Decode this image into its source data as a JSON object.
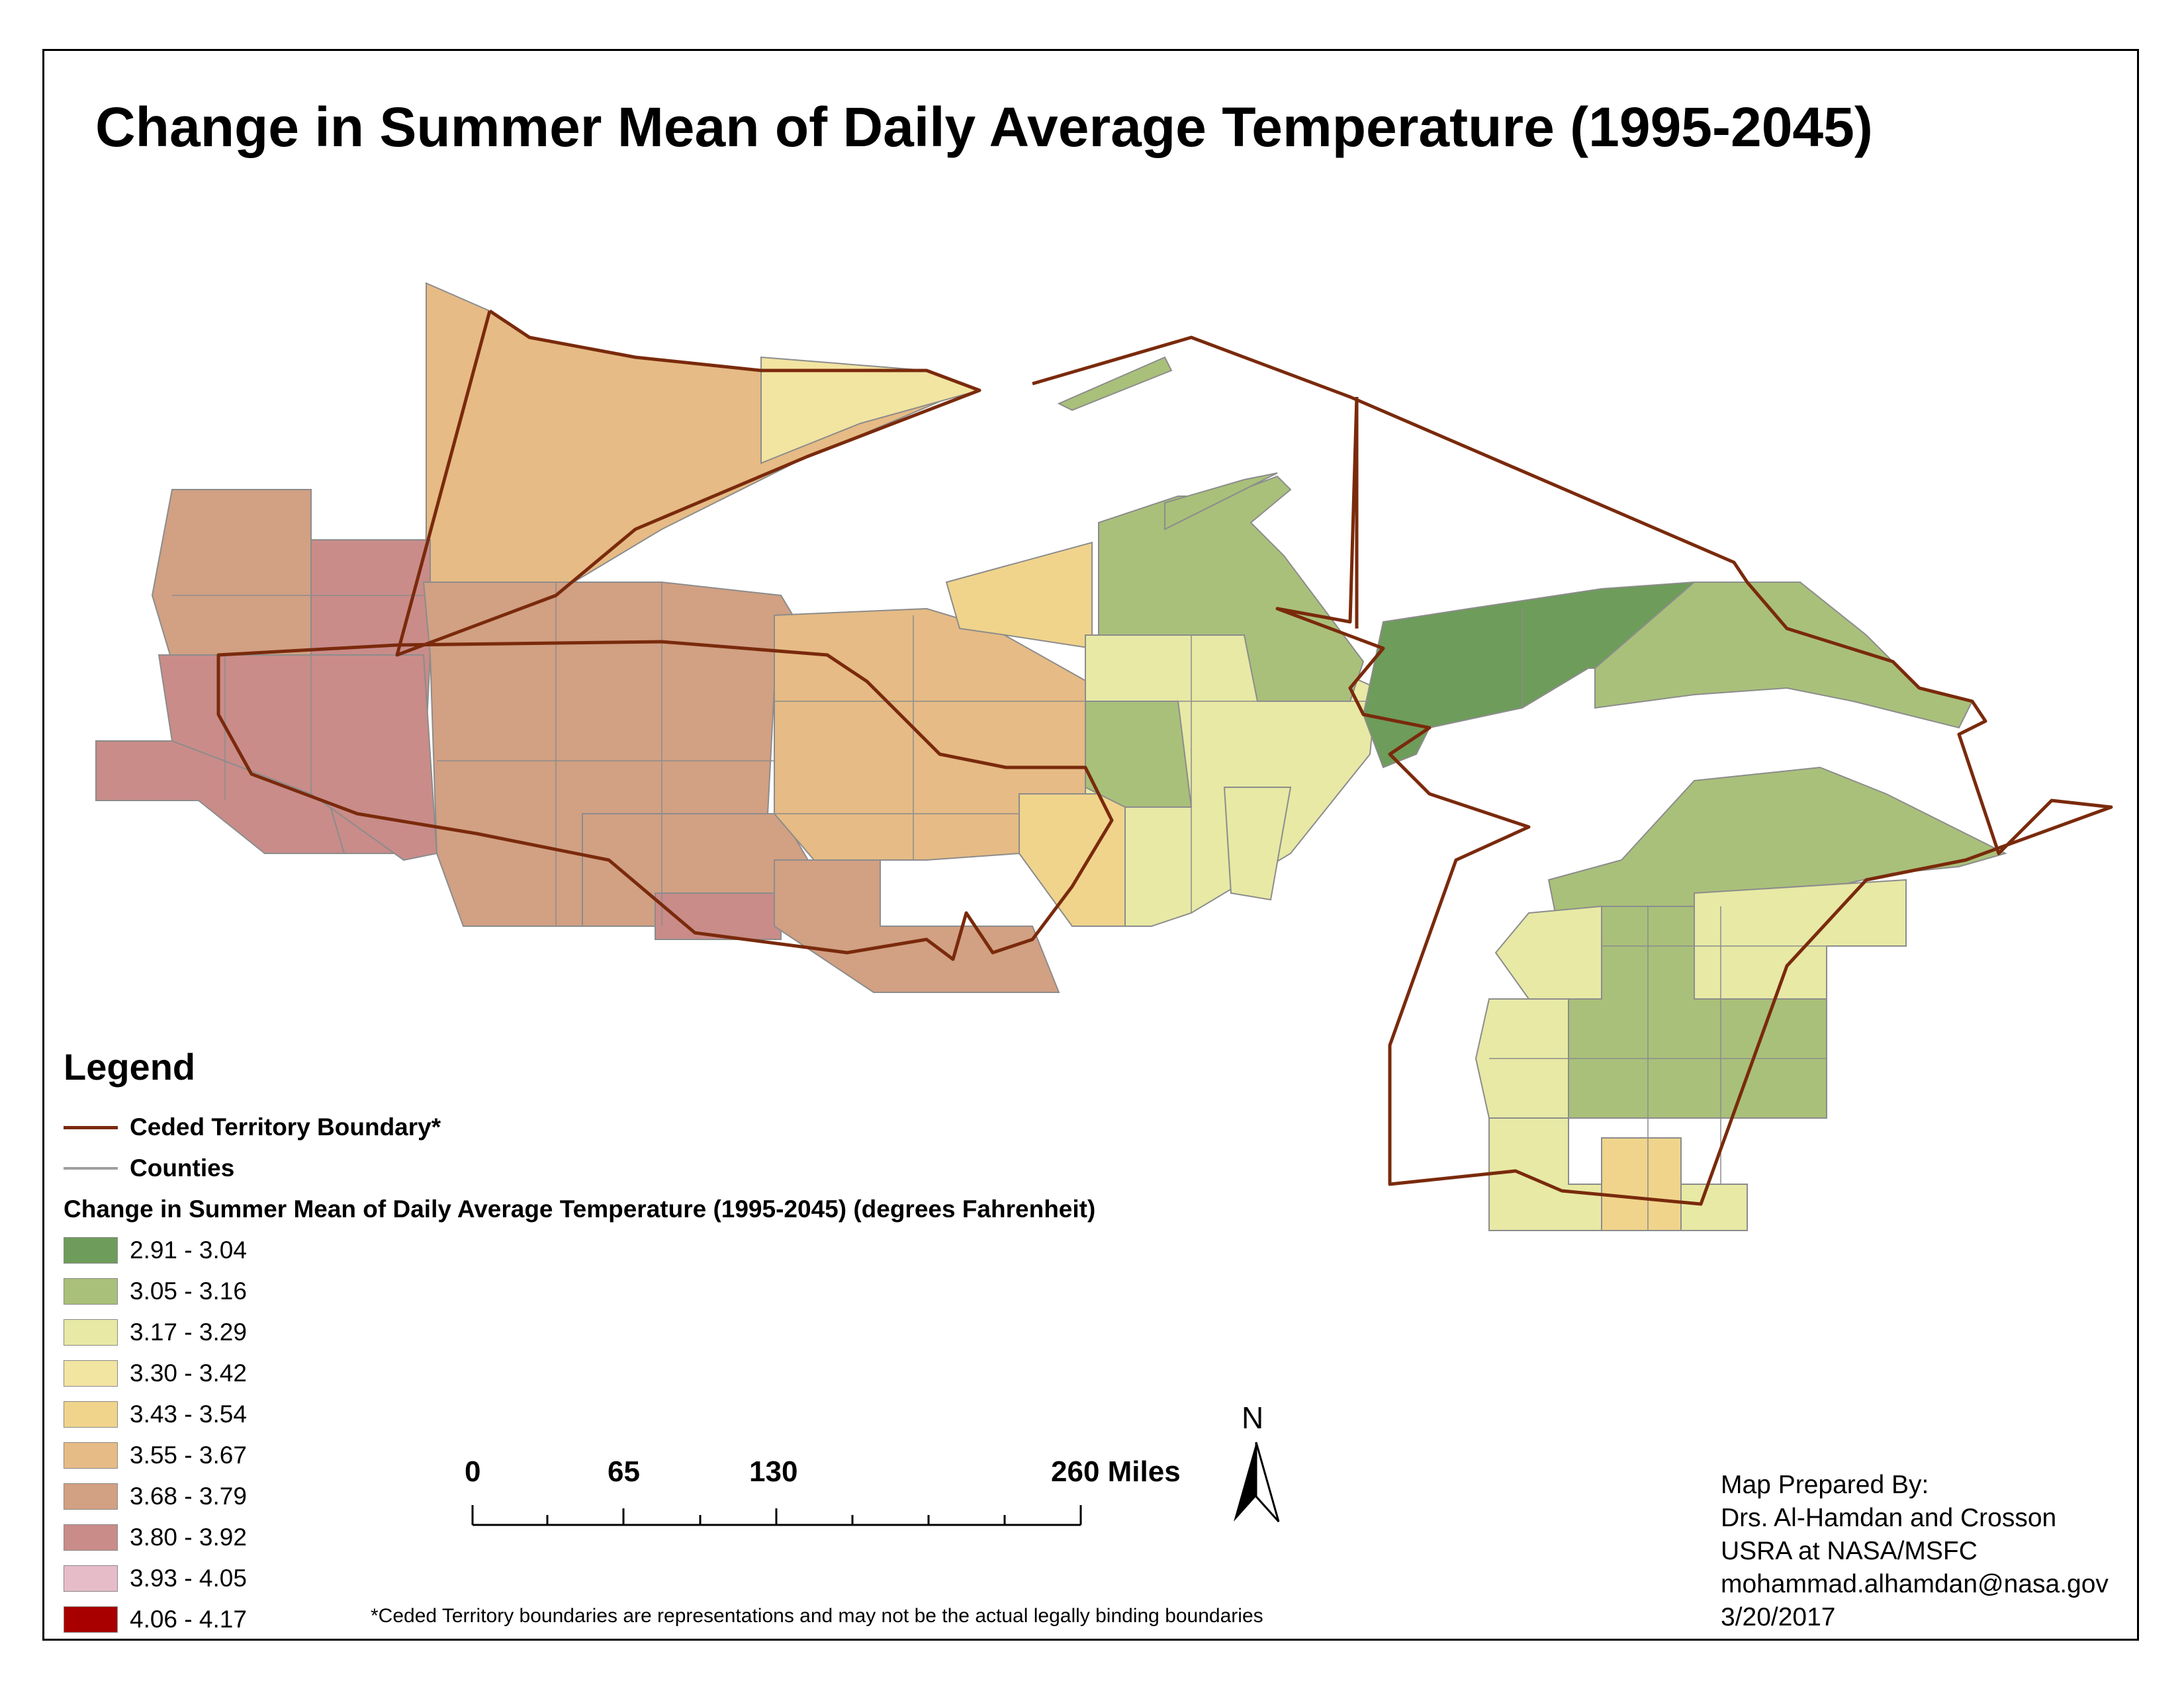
{
  "title": "Change in Summer Mean of Daily Average Temperature (1995-2045)",
  "legend": {
    "heading": "Legend",
    "boundary_label": "Ceded Territory Boundary*",
    "counties_label": "Counties",
    "ramp_title": "Change in Summer Mean of Daily Average Temperature (1995-2045) (degrees Fahrenheit)",
    "classes": [
      {
        "label": "2.91 - 3.04",
        "color": "#6e9c5a"
      },
      {
        "label": "3.05 - 3.16",
        "color": "#a9c07a"
      },
      {
        "label": "3.17 - 3.29",
        "color": "#e7e9a5"
      },
      {
        "label": "3.30 - 3.42",
        "color": "#f2e4a1"
      },
      {
        "label": "3.43 - 3.54",
        "color": "#f0d48c"
      },
      {
        "label": "3.55 - 3.67",
        "color": "#e6bb85"
      },
      {
        "label": "3.68 - 3.79",
        "color": "#d2a083"
      },
      {
        "label": "3.80 - 3.92",
        "color": "#c98c89"
      },
      {
        "label": "3.93 - 4.05",
        "color": "#e7bcc9"
      },
      {
        "label": "4.06 - 4.17",
        "color": "#a80000"
      }
    ]
  },
  "colors": {
    "boundary": "#7a2a0c",
    "county_line": "#8c8c8c"
  },
  "scale_bar": {
    "labels": [
      "0",
      "65",
      "130",
      "260 Miles"
    ]
  },
  "north_arrow": {
    "label": "N"
  },
  "credit": {
    "line1": "Map Prepared By:",
    "line2": "Drs. Al-Hamdan and Crosson",
    "line3": "USRA at NASA/MSFC",
    "line4": "mohammad.alhamdan@nasa.gov",
    "line5": "3/20/2017"
  },
  "footnote": "*Ceded Territory boundaries are representations and may not be the actual legally binding boundaries"
}
